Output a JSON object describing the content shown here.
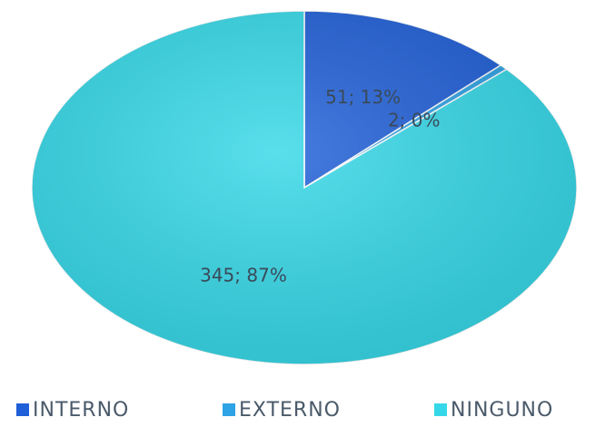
{
  "chart_data": {
    "type": "pie",
    "categories": [
      "INTERNO",
      "EXTERNO",
      "NINGUNO"
    ],
    "values": [
      51,
      2,
      345
    ],
    "value_labels": [
      "51; 13%",
      "2; 0%",
      "345; 87%"
    ],
    "colors": [
      "#1f5fd8",
      "#2ea3e6",
      "#35d8e8"
    ],
    "legend": "bottom"
  }
}
